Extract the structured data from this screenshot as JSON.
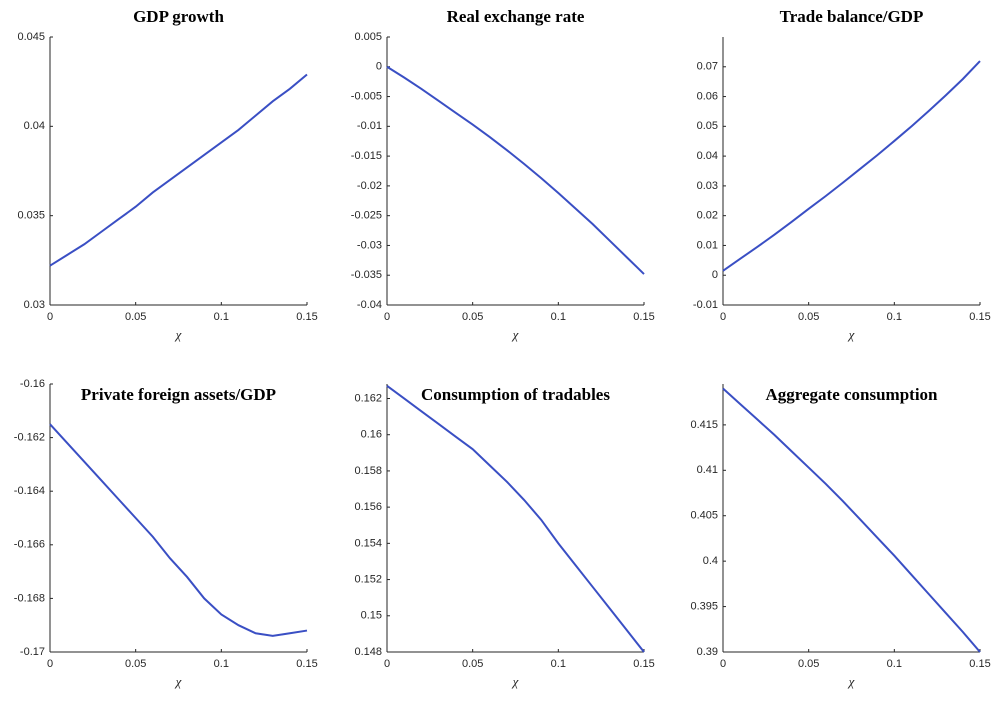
{
  "chart_data": [
    {
      "type": "line",
      "title": "GDP growth",
      "xlabel": "χ",
      "x": [
        0,
        0.01,
        0.02,
        0.03,
        0.04,
        0.05,
        0.06,
        0.07,
        0.08,
        0.09,
        0.1,
        0.11,
        0.12,
        0.13,
        0.14,
        0.15
      ],
      "series": [
        {
          "color": "#3a4fc4",
          "values": [
            0.0322,
            0.0328,
            0.0334,
            0.0341,
            0.0348,
            0.0355,
            0.0363,
            0.037,
            0.0377,
            0.0384,
            0.0391,
            0.0398,
            0.0406,
            0.0414,
            0.0421,
            0.0429
          ]
        }
      ],
      "xlim": [
        0,
        0.15
      ],
      "xticks": [
        0,
        0.05,
        0.1,
        0.15
      ],
      "ylim": [
        0.03,
        0.045
      ],
      "yticks": [
        0.03,
        0.035,
        0.04,
        0.045
      ]
    },
    {
      "type": "line",
      "title": "Real exchange rate",
      "xlabel": "χ",
      "x": [
        0,
        0.01,
        0.02,
        0.03,
        0.04,
        0.05,
        0.06,
        0.07,
        0.08,
        0.09,
        0.1,
        0.11,
        0.12,
        0.13,
        0.14,
        0.15
      ],
      "series": [
        {
          "color": "#3a4fc4",
          "values": [
            0,
            -0.0018,
            -0.0037,
            -0.0057,
            -0.0077,
            -0.0097,
            -0.0118,
            -0.014,
            -0.0163,
            -0.0187,
            -0.0212,
            -0.0238,
            -0.0264,
            -0.0292,
            -0.032,
            -0.0348
          ]
        }
      ],
      "xlim": [
        0,
        0.15
      ],
      "xticks": [
        0,
        0.05,
        0.1,
        0.15
      ],
      "ylim": [
        -0.04,
        0.005
      ],
      "yticks": [
        -0.04,
        -0.035,
        -0.03,
        -0.025,
        -0.02,
        -0.015,
        -0.01,
        -0.005,
        0,
        0.005
      ]
    },
    {
      "type": "line",
      "title": "Trade balance/GDP",
      "xlabel": "χ",
      "x": [
        0,
        0.01,
        0.02,
        0.03,
        0.04,
        0.05,
        0.06,
        0.07,
        0.08,
        0.09,
        0.1,
        0.11,
        0.12,
        0.13,
        0.14,
        0.15
      ],
      "series": [
        {
          "color": "#3a4fc4",
          "values": [
            0.0015,
            0.0055,
            0.0095,
            0.0136,
            0.0179,
            0.0223,
            0.0266,
            0.0311,
            0.0357,
            0.0403,
            0.0451,
            0.05,
            0.0551,
            0.0604,
            0.0659,
            0.0719
          ]
        }
      ],
      "xlim": [
        0,
        0.15
      ],
      "xticks": [
        0,
        0.05,
        0.1,
        0.15
      ],
      "ylim": [
        -0.01,
        0.08
      ],
      "yticks": [
        -0.01,
        0,
        0.01,
        0.02,
        0.03,
        0.04,
        0.05,
        0.06,
        0.07
      ]
    },
    {
      "type": "line",
      "title": "Private foreign assets/GDP",
      "xlabel": "χ",
      "x": [
        0,
        0.01,
        0.02,
        0.03,
        0.04,
        0.05,
        0.06,
        0.07,
        0.08,
        0.09,
        0.1,
        0.11,
        0.12,
        0.13,
        0.14,
        0.15
      ],
      "series": [
        {
          "color": "#3a4fc4",
          "values": [
            -0.1615,
            -0.1622,
            -0.1629,
            -0.1636,
            -0.1643,
            -0.165,
            -0.1657,
            -0.1665,
            -0.1672,
            -0.168,
            -0.1686,
            -0.169,
            -0.1693,
            -0.1694,
            -0.1693,
            -0.1692
          ]
        }
      ],
      "xlim": [
        0,
        0.15
      ],
      "xticks": [
        0,
        0.05,
        0.1,
        0.15
      ],
      "ylim": [
        -0.17,
        -0.16
      ],
      "yticks": [
        -0.17,
        -0.168,
        -0.166,
        -0.164,
        -0.162,
        -0.16
      ]
    },
    {
      "type": "line",
      "title": "Consumption of tradables",
      "xlabel": "χ",
      "x": [
        0,
        0.01,
        0.02,
        0.03,
        0.04,
        0.05,
        0.06,
        0.07,
        0.08,
        0.09,
        0.1,
        0.11,
        0.12,
        0.13,
        0.14,
        0.15
      ],
      "series": [
        {
          "color": "#3a4fc4",
          "values": [
            0.1627,
            0.162,
            0.1613,
            0.1606,
            0.1599,
            0.1592,
            0.1583,
            0.1574,
            0.1564,
            0.1553,
            0.154,
            0.1528,
            0.1516,
            0.1504,
            0.1492,
            0.148
          ]
        }
      ],
      "xlim": [
        0,
        0.15
      ],
      "xticks": [
        0,
        0.05,
        0.1,
        0.15
      ],
      "ylim": [
        0.148,
        0.1628
      ],
      "yticks": [
        0.148,
        0.15,
        0.152,
        0.154,
        0.156,
        0.158,
        0.16,
        0.162
      ]
    },
    {
      "type": "line",
      "title": "Aggregate consumption",
      "xlabel": "χ",
      "x": [
        0,
        0.01,
        0.02,
        0.03,
        0.04,
        0.05,
        0.06,
        0.07,
        0.08,
        0.09,
        0.1,
        0.11,
        0.12,
        0.13,
        0.14,
        0.15
      ],
      "series": [
        {
          "color": "#3a4fc4",
          "values": [
            0.419,
            0.4173,
            0.4156,
            0.4139,
            0.4121,
            0.4103,
            0.4085,
            0.4066,
            0.4046,
            0.4026,
            0.4006,
            0.3985,
            0.3964,
            0.3943,
            0.3922,
            0.39
          ]
        }
      ],
      "xlim": [
        0,
        0.15
      ],
      "xticks": [
        0,
        0.05,
        0.1,
        0.15
      ],
      "ylim": [
        0.39,
        0.4195
      ],
      "yticks": [
        0.39,
        0.395,
        0.4,
        0.405,
        0.41,
        0.415
      ]
    }
  ]
}
